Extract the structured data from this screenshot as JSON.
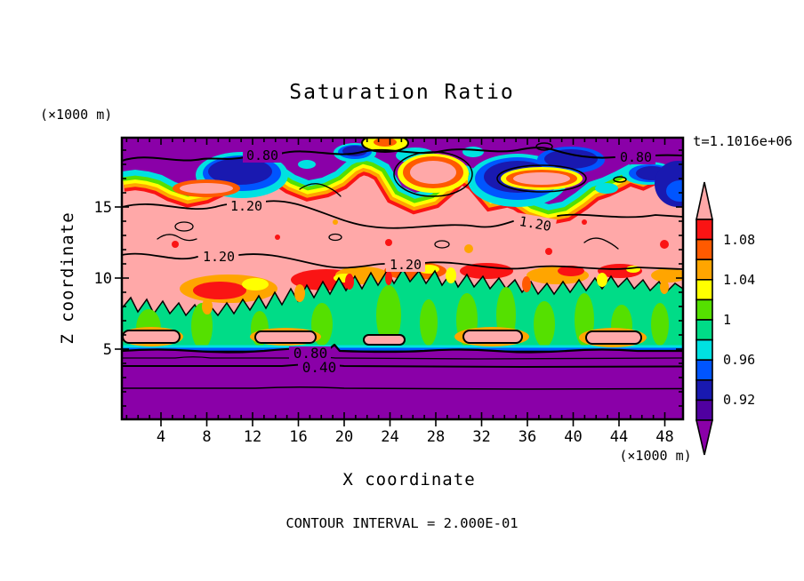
{
  "title": "Saturation Ratio",
  "timestamp": "t=1.1016e+06",
  "footer": "CONTOUR INTERVAL = 2.000E-01",
  "axes": {
    "x": {
      "label": "X coordinate",
      "unit": "(×1000 m)",
      "ticks": [
        "4",
        "8",
        "12",
        "16",
        "20",
        "24",
        "28",
        "32",
        "36",
        "40",
        "44",
        "48"
      ]
    },
    "y": {
      "label": "Z coordinate",
      "unit": "(×1000 m)",
      "ticks": [
        "15",
        "10",
        "5"
      ]
    }
  },
  "colorbar": {
    "labels": [
      "1.08",
      "1.04",
      "1",
      "0.96",
      "0.92"
    ]
  },
  "contour_labels": [
    "0.80",
    "0.80",
    "1.20",
    "1.20",
    "1.20",
    "1.20",
    "0.80",
    "0.40"
  ],
  "colors": {
    "pink": "#ffa8a8",
    "red": "#fa1414",
    "orangered": "#ff5a00",
    "orange": "#ffa500",
    "yellow": "#ffff00",
    "greenyellow": "#55e000",
    "springgreen": "#00dc87",
    "cyan": "#00e1e1",
    "blue": "#0055ff",
    "navy": "#1919b0",
    "darkviolet": "#5000a0",
    "purple": "#8a00a8",
    "line": "#000000",
    "background": "#ffffff"
  },
  "chart_data": {
    "type": "heatmap",
    "subtype": "filled-contour",
    "title": "Saturation Ratio",
    "xlabel": "X coordinate (×1000 m)",
    "ylabel": "Z coordinate (×1000 m)",
    "time_annotation": "t=1.1016e+06",
    "contour_interval": 0.2,
    "labeled_contour_values": [
      0.4,
      0.8,
      1.2
    ],
    "x_ticks": [
      4,
      8,
      12,
      16,
      20,
      24,
      28,
      32,
      36,
      40,
      44,
      48
    ],
    "y_ticks": [
      5,
      10,
      15
    ],
    "xlim": [
      0.5,
      49.5
    ],
    "ylim": [
      0,
      19.8
    ],
    "colorbar": {
      "orientation": "vertical",
      "boundaries": [
        0.9,
        0.92,
        0.94,
        0.96,
        0.98,
        1.0,
        1.02,
        1.04,
        1.06,
        1.08,
        1.1
      ],
      "tick_labels": [
        1.08,
        1.04,
        1,
        0.96,
        0.92
      ],
      "band_colors_top_to_bottom": [
        "pink(>1.10)",
        "red(1.08-1.10)",
        "orangered(1.06-1.08)",
        "orange(1.04-1.06)",
        "yellow(1.02-1.04)",
        "greenyellow(1.00-1.02)",
        "springgreen(0.98-1.00)",
        "cyan(0.96-0.98)",
        "blue(0.94-0.96)",
        "navy(0.92-0.94)",
        "darkviolet(0.90-0.92)",
        "purple(<0.90)"
      ]
    },
    "field_summary": [
      {
        "region": "top band z≈17.5-19.8 km",
        "value": "saturation ratio < 0.9 (purple) with pockets 0.90-0.98 (navy/blue/cyan) and a 0.80 labeled contour"
      },
      {
        "region": "cloud layer z≈9-17 km",
        "value": "≈1.1-1.2 (pink) with embedded >1.02-1.10 cells (yellow/orange/red mottling) and labeled 1.20 contours"
      },
      {
        "region": "convective band z≈5.5-9 km",
        "value": "≈0.98-1.02 (spring green / green-yellow cells) with pink lenses >1.1 near its base"
      },
      {
        "region": "sub-cloud z<5.5 km",
        "value": "stratified, decreasing downward; labeled contours 0.80 and 0.40 with unlabeled 0.60 and 0.20 lines (purple, <0.9)"
      }
    ]
  }
}
